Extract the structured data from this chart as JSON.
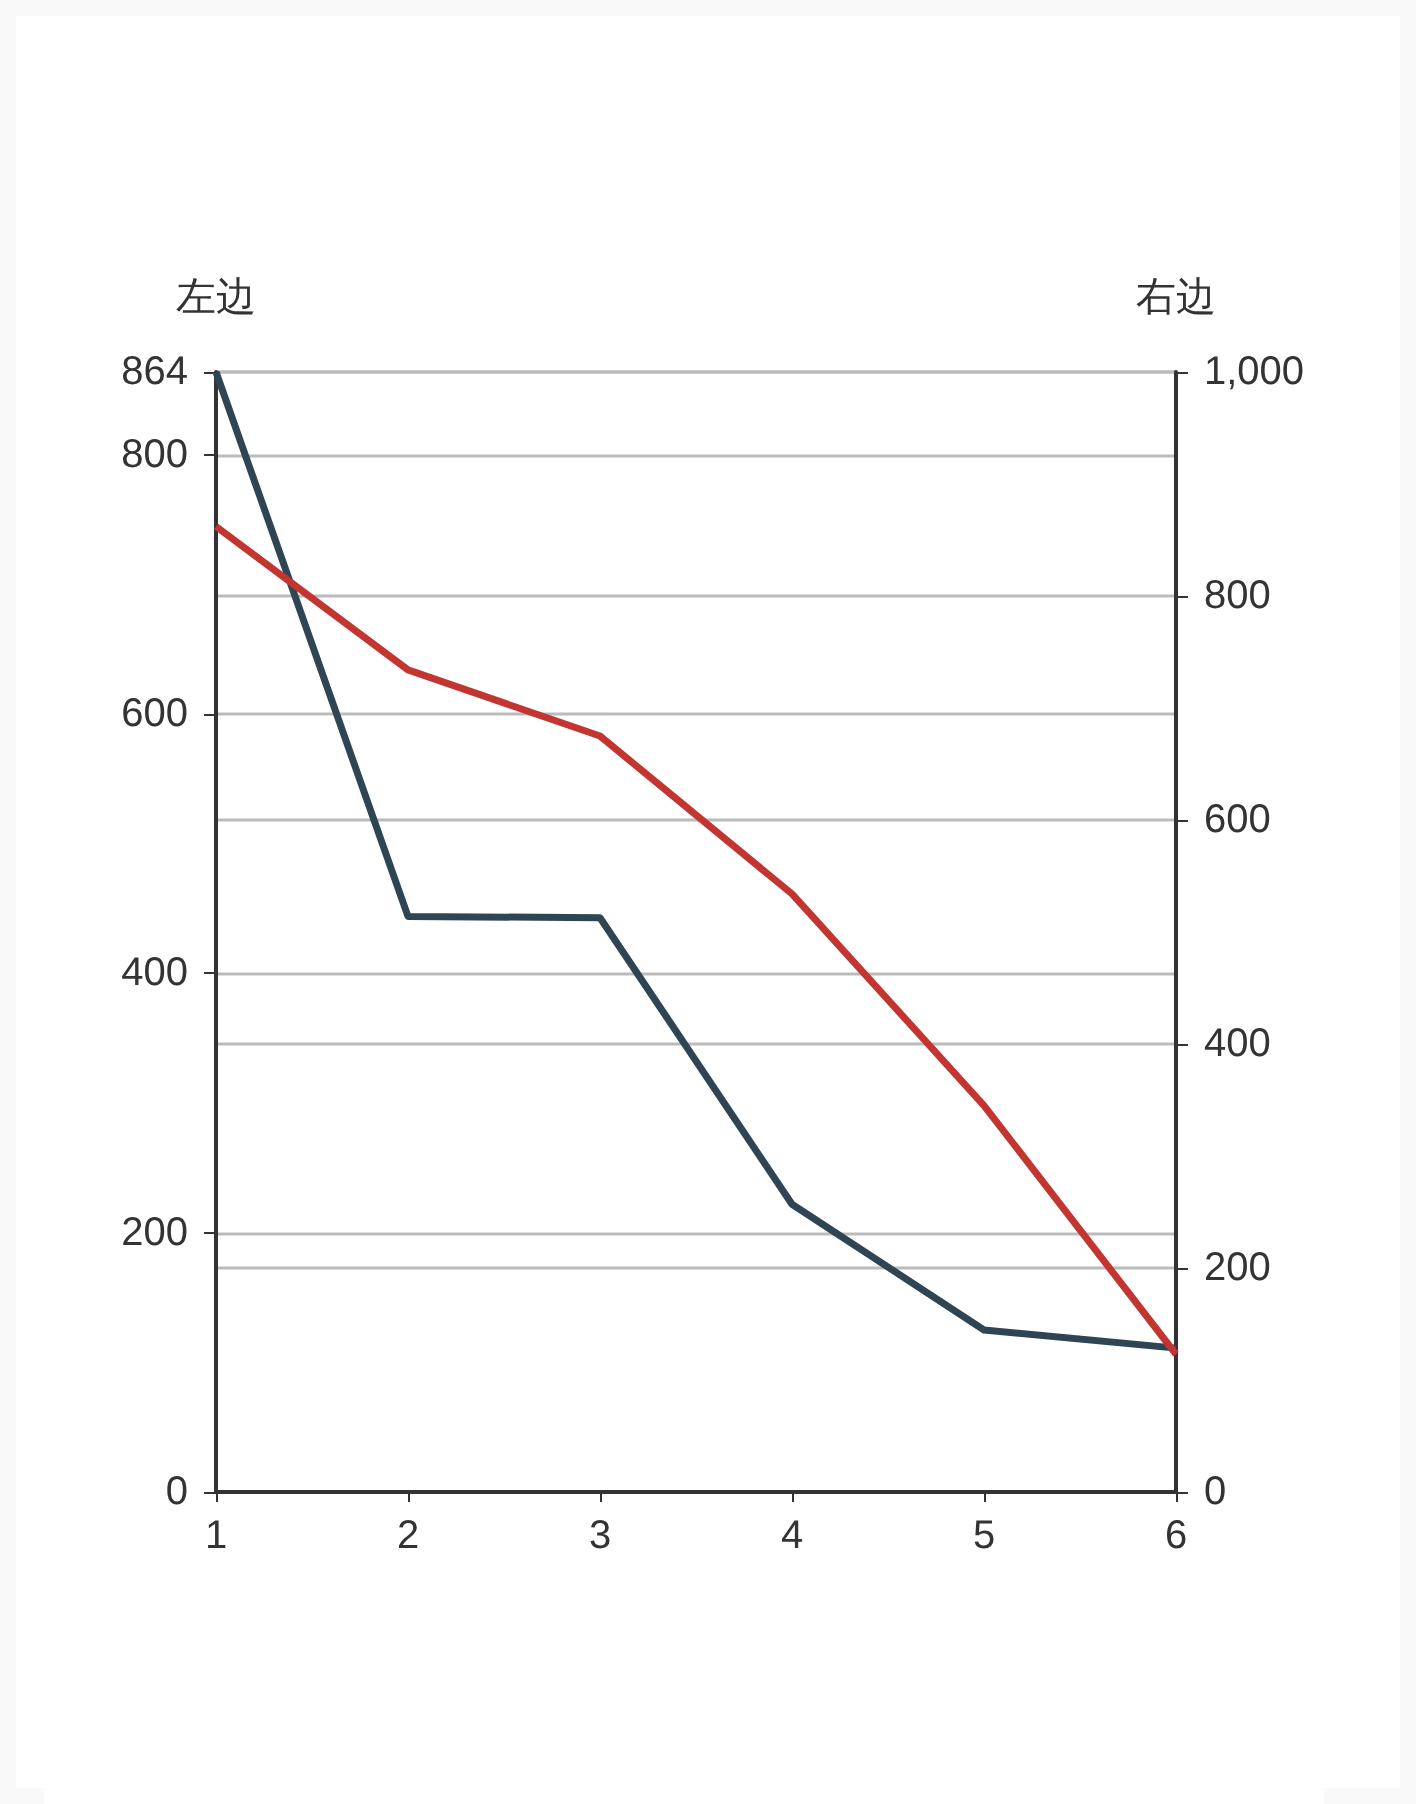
{
  "chart_data": {
    "type": "line",
    "ylabel": "左边",
    "y2label": "右边",
    "categories": [
      "1",
      "2",
      "3",
      "4",
      "5",
      "6"
    ],
    "series": [
      {
        "color": "#2f4554",
        "values": [
          864,
          444,
          443,
          222,
          125,
          111
        ]
      },
      {
        "color": "#c23531",
        "axis": "y2",
        "values": [
          862,
          734,
          675,
          534,
          345,
          123
        ]
      }
    ],
    "ylim": [
      0,
      864
    ],
    "yticks": [
      0,
      200,
      400,
      600,
      800,
      864
    ],
    "y2lim": [
      0,
      1000
    ],
    "y2ticks": [
      0,
      200,
      400,
      600,
      800,
      {
        "value": 1000,
        "label": "1,000"
      }
    ],
    "grid": "y",
    "marker": "none"
  }
}
